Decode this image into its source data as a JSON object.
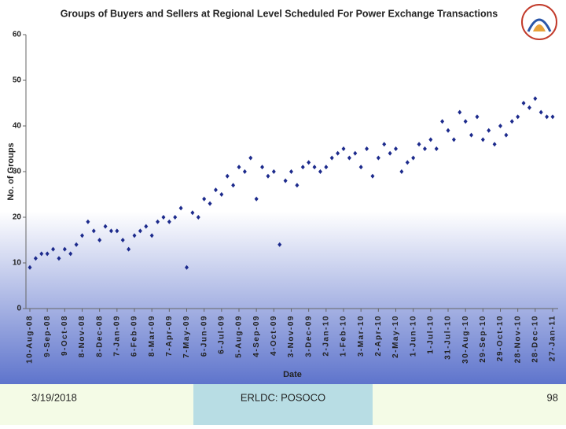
{
  "chart_data": {
    "type": "scatter",
    "title": "Groups of Buyers and Sellers at Regional Level Scheduled For Power Exchange Transactions",
    "x_label": "Date",
    "y_label": "No. of Groups",
    "color": "#1c2a8c",
    "x": [
      "10-Aug-08",
      "20-Aug-08",
      "30-Aug-08",
      "9-Sep-08",
      "19-Sep-08",
      "29-Sep-08",
      "9-Oct-08",
      "19-Oct-08",
      "29-Oct-08",
      "8-Nov-08",
      "18-Nov-08",
      "28-Nov-08",
      "8-Dec-08",
      "18-Dec-08",
      "28-Dec-08",
      "7-Jan-09",
      "17-Jan-09",
      "27-Jan-09",
      "6-Feb-09",
      "16-Feb-09",
      "26-Feb-09",
      "8-Mar-09",
      "18-Mar-09",
      "28-Mar-09",
      "7-Apr-09",
      "17-Apr-09",
      "27-Apr-09",
      "7-May-09",
      "17-May-09",
      "27-May-09",
      "6-Jun-09",
      "16-Jun-09",
      "26-Jun-09",
      "6-Jul-09",
      "16-Jul-09",
      "26-Jul-09",
      "5-Aug-09",
      "15-Aug-09",
      "25-Aug-09",
      "4-Sep-09",
      "14-Sep-09",
      "24-Sep-09",
      "4-Oct-09",
      "14-Oct-09",
      "24-Oct-09",
      "3-Nov-09",
      "13-Nov-09",
      "23-Nov-09",
      "3-Dec-09",
      "13-Dec-09",
      "23-Dec-09",
      "2-Jan-10",
      "12-Jan-10",
      "22-Jan-10",
      "1-Feb-10",
      "11-Feb-10",
      "21-Feb-10",
      "3-Mar-10",
      "13-Mar-10",
      "23-Mar-10",
      "2-Apr-10",
      "12-Apr-10",
      "22-Apr-10",
      "2-May-10",
      "12-May-10",
      "22-May-10",
      "1-Jun-10",
      "11-Jun-10",
      "21-Jun-10",
      "1-Jul-10",
      "11-Jul-10",
      "21-Jul-10",
      "31-Jul-10",
      "10-Aug-10",
      "20-Aug-10",
      "30-Aug-10",
      "9-Sep-10",
      "19-Sep-10",
      "29-Sep-10",
      "9-Oct-10",
      "19-Oct-10",
      "29-Oct-10",
      "8-Nov-10",
      "18-Nov-10",
      "28-Nov-10",
      "8-Dec-10",
      "18-Dec-10",
      "28-Dec-10",
      "7-Jan-11",
      "17-Jan-11",
      "27-Jan-11"
    ],
    "values": [
      9,
      11,
      12,
      12,
      13,
      11,
      13,
      12,
      14,
      16,
      19,
      17,
      15,
      18,
      17,
      17,
      15,
      13,
      16,
      17,
      18,
      16,
      19,
      20,
      19,
      20,
      22,
      9,
      21,
      20,
      24,
      23,
      26,
      25,
      29,
      27,
      31,
      30,
      33,
      24,
      31,
      29,
      30,
      14,
      28,
      30,
      27,
      31,
      32,
      31,
      30,
      31,
      33,
      34,
      35,
      33,
      34,
      31,
      35,
      29,
      33,
      36,
      34,
      35,
      30,
      32,
      33,
      36,
      35,
      37,
      35,
      41,
      39,
      37,
      43,
      41,
      38,
      42,
      37,
      39,
      36,
      40,
      38,
      41,
      42,
      45,
      44,
      46,
      43,
      42,
      42
    ],
    "xlim": [
      "10-Aug-08",
      "27-Jan-11"
    ],
    "xticks": [
      "10-Aug-08",
      "9-Sep-08",
      "9-Oct-08",
      "8-Nov-08",
      "8-Dec-08",
      "7-Jan-09",
      "6-Feb-09",
      "8-Mar-09",
      "7-Apr-09",
      "7-May-09",
      "6-Jun-09",
      "6-Jul-09",
      "5-Aug-09",
      "4-Sep-09",
      "4-Oct-09",
      "3-Nov-09",
      "3-Dec-09",
      "2-Jan-10",
      "1-Feb-10",
      "3-Mar-10",
      "2-Apr-10",
      "2-May-10",
      "1-Jun-10",
      "1-Jul-10",
      "31-Jul-10",
      "30-Aug-10",
      "29-Sep-10",
      "29-Oct-10",
      "28-Nov-10",
      "28-Dec-10",
      "27-Jan-11"
    ],
    "ylim": [
      0,
      60
    ],
    "yticks": [
      0,
      10,
      20,
      30,
      40,
      50,
      60
    ]
  },
  "footer": {
    "date": "3/19/2018",
    "org": "ERLDC: POSOCO",
    "page": "98"
  }
}
